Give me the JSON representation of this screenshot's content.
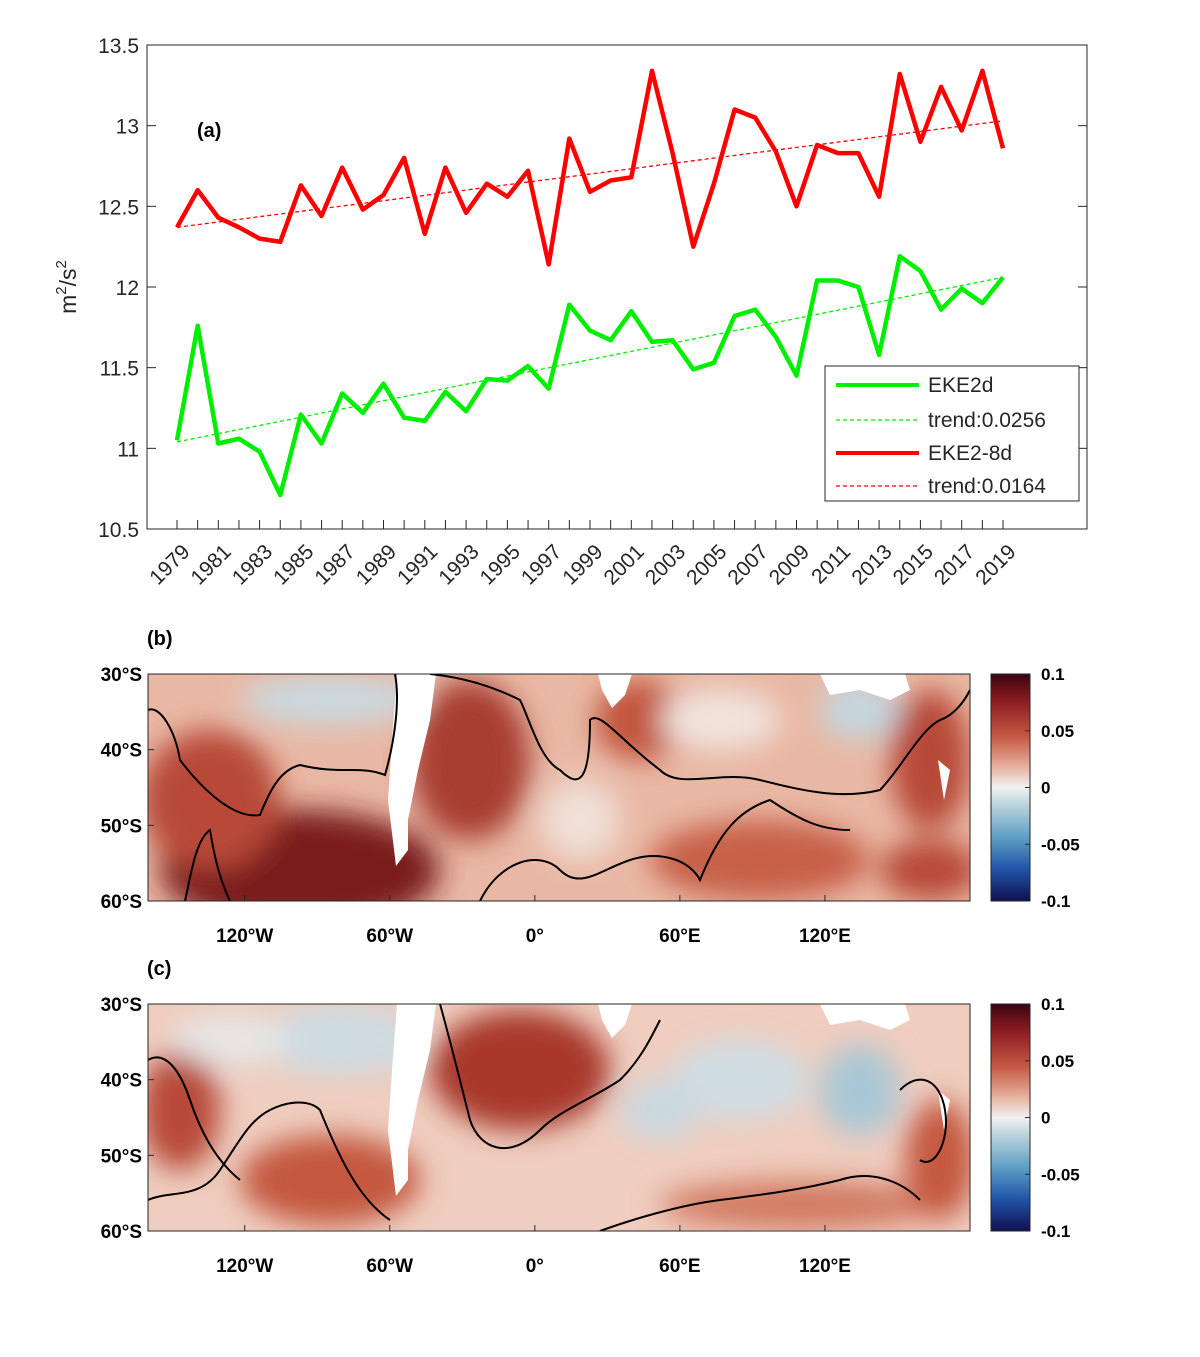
{
  "chart_data": [
    {
      "type": "line",
      "panel_label": "(a)",
      "ylabel_base": "m",
      "ylabel_sup1": "2",
      "ylabel_mid": "/s",
      "ylabel_sup2": "2",
      "ylim": [
        10.5,
        13.5
      ],
      "yticks": [
        "10.5",
        "11",
        "11.5",
        "12",
        "12.5",
        "13",
        "13.5"
      ],
      "x": [
        1979,
        1980,
        1981,
        1982,
        1983,
        1984,
        1985,
        1986,
        1987,
        1988,
        1989,
        1990,
        1991,
        1992,
        1993,
        1994,
        1995,
        1996,
        1997,
        1998,
        1999,
        2000,
        2001,
        2002,
        2003,
        2004,
        2005,
        2006,
        2007,
        2008,
        2009,
        2010,
        2011,
        2012,
        2013,
        2014,
        2015,
        2016,
        2017,
        2018,
        2019
      ],
      "xticks": [
        "1979",
        "1981",
        "1983",
        "1985",
        "1987",
        "1989",
        "1991",
        "1993",
        "1995",
        "1997",
        "1999",
        "2001",
        "2003",
        "2005",
        "2007",
        "2009",
        "2011",
        "2013",
        "2015",
        "2017",
        "2019"
      ],
      "series": [
        {
          "name": "EKE2d",
          "color": "#00ee00",
          "values": [
            11.05,
            11.76,
            11.03,
            11.06,
            10.98,
            10.71,
            11.21,
            11.03,
            11.34,
            11.22,
            11.4,
            11.19,
            11.17,
            11.35,
            11.23,
            11.43,
            11.42,
            11.51,
            11.37,
            11.89,
            11.73,
            11.67,
            11.85,
            11.66,
            11.67,
            11.49,
            11.53,
            11.82,
            11.86,
            11.69,
            11.45,
            12.04,
            12.04,
            12.0,
            11.58,
            12.19,
            12.1,
            11.86,
            11.99,
            11.9,
            12.06
          ],
          "trend_name": "trend:0.0256",
          "trend_start": 11.04,
          "trend_end": 12.06
        },
        {
          "name": "EKE2-8d",
          "color": "#ff0000",
          "values": [
            12.37,
            12.6,
            12.43,
            12.37,
            12.3,
            12.28,
            12.63,
            12.44,
            12.74,
            12.48,
            12.57,
            12.8,
            12.33,
            12.74,
            12.46,
            12.64,
            12.56,
            12.72,
            12.14,
            12.92,
            12.59,
            12.66,
            12.68,
            13.34,
            12.83,
            12.25,
            12.64,
            13.1,
            13.05,
            12.84,
            12.5,
            12.88,
            12.83,
            12.83,
            12.56,
            13.32,
            12.9,
            13.24,
            12.97,
            13.34,
            12.86
          ],
          "trend_name": "trend:0.0164",
          "trend_start": 12.37,
          "trend_end": 13.03
        }
      ],
      "legend_position": "bottom-right"
    },
    {
      "type": "heatmap",
      "panel_label": "(b)",
      "yticks": [
        "30°S",
        "40°S",
        "50°S",
        "60°S"
      ],
      "xticks": [
        "120°W",
        "60°W",
        "0°",
        "60°E",
        "120°E"
      ],
      "colorbar_ticks": [
        "0.1",
        "0.05",
        "0",
        "-0.05",
        "-0.1"
      ],
      "colorbar_range": [
        -0.1,
        0.1
      ]
    },
    {
      "type": "heatmap",
      "panel_label": "(c)",
      "yticks": [
        "30°S",
        "40°S",
        "50°S",
        "60°S"
      ],
      "xticks": [
        "120°W",
        "60°W",
        "0°",
        "60°E",
        "120°E"
      ],
      "colorbar_ticks": [
        "0.1",
        "0.05",
        "0",
        "-0.05",
        "-0.1"
      ],
      "colorbar_range": [
        -0.1,
        0.1
      ]
    }
  ]
}
